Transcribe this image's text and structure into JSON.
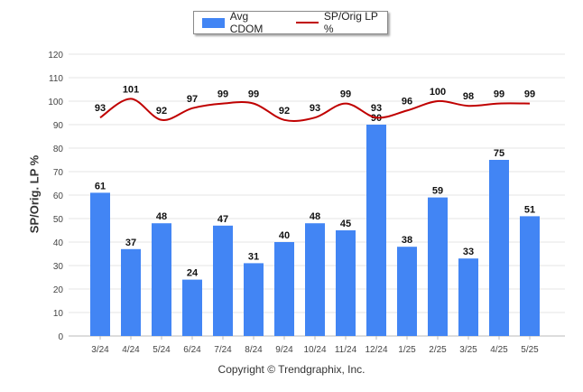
{
  "legend": {
    "bar_label": "Avg CDOM",
    "line_label": "SP/Orig LP %"
  },
  "copyright": "Copyright © Trendgraphix, Inc.",
  "colors": {
    "bar": "#4285f4",
    "line": "#c00000",
    "grid": "#e6e6e6"
  },
  "chart_data": {
    "type": "bar",
    "categories": [
      "3/24",
      "4/24",
      "5/24",
      "6/24",
      "7/24",
      "8/24",
      "9/24",
      "10/24",
      "11/24",
      "12/24",
      "1/25",
      "2/25",
      "3/25",
      "4/25",
      "5/25"
    ],
    "series": [
      {
        "name": "Avg CDOM",
        "type": "bar",
        "values": [
          61,
          37,
          48,
          24,
          47,
          31,
          40,
          48,
          45,
          90,
          38,
          59,
          33,
          75,
          51
        ]
      },
      {
        "name": "SP/Orig LP %",
        "type": "line",
        "values": [
          93,
          101,
          92,
          97,
          99,
          99,
          92,
          93,
          99,
          93,
          96,
          100,
          98,
          99,
          99
        ]
      }
    ],
    "ylabel": "SP/Orig. LP %",
    "ylim": [
      0,
      120
    ],
    "yticks": [
      0,
      10,
      20,
      30,
      40,
      50,
      60,
      70,
      80,
      90,
      100,
      110,
      120
    ],
    "grid": true,
    "legend_position": "top-center"
  }
}
